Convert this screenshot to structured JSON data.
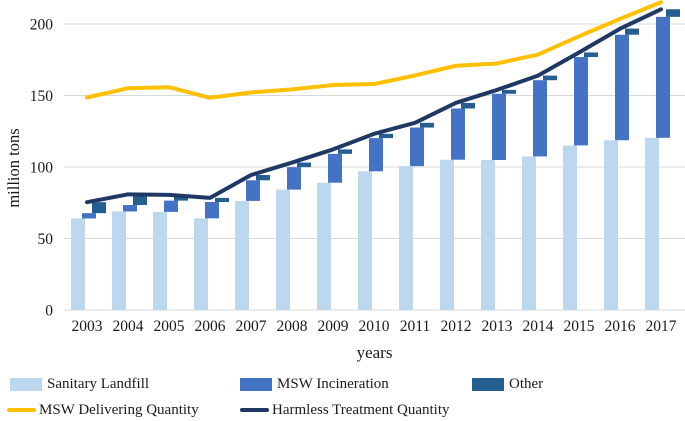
{
  "chart_data": {
    "type": "bar",
    "subtype": "cascading-stacked-bars-with-overlay-lines",
    "title": "",
    "xlabel": "years",
    "ylabel": "million tons",
    "ylim": [
      0,
      217
    ],
    "yticks": [
      0,
      50,
      100,
      150,
      200
    ],
    "grid": true,
    "legend_position": "bottom",
    "categories": [
      "2003",
      "2004",
      "2005",
      "2006",
      "2007",
      "2008",
      "2009",
      "2010",
      "2011",
      "2012",
      "2013",
      "2014",
      "2015",
      "2016",
      "2017"
    ],
    "bar_series": [
      {
        "name": "Sanitary Landfill",
        "color": "#BDD7EE",
        "values": [
          64.0,
          68.9,
          68.6,
          64.1,
          76.3,
          84.2,
          89.0,
          97.0,
          100.6,
          105.1,
          104.9,
          107.4,
          115.1,
          118.7,
          120.4
        ]
      },
      {
        "name": "MSW Incineration",
        "color": "#4472C4",
        "values": [
          3.7,
          4.5,
          7.9,
          11.4,
          14.4,
          15.7,
          20.2,
          23.2,
          27.0,
          35.8,
          46.3,
          53.3,
          61.8,
          73.8,
          84.6
        ]
      },
      {
        "name": "Other",
        "color": "#255E91",
        "values": [
          7.7,
          7.5,
          4.0,
          2.9,
          3.7,
          3.2,
          3.1,
          3.0,
          3.3,
          3.9,
          2.7,
          3.2,
          3.2,
          4.3,
          5.3
        ]
      }
    ],
    "line_series": [
      {
        "name": "MSW Delivering Quantity",
        "color": "#FFC000",
        "values": [
          148.6,
          155.1,
          155.8,
          148.4,
          152.1,
          154.3,
          157.3,
          158.0,
          164.0,
          170.8,
          172.4,
          178.6,
          191.4,
          203.6,
          215.2
        ]
      },
      {
        "name": "Harmless Treatment Quantity",
        "color": "#1F3864",
        "values": [
          75.4,
          80.9,
          80.5,
          78.4,
          94.4,
          103.1,
          112.3,
          123.2,
          130.9,
          144.9,
          153.9,
          163.9,
          180.1,
          196.7,
          210.3
        ]
      }
    ],
    "colors": {
      "grid": "#D9D9D9",
      "text": "#1A1A1A",
      "background": "#FFFFFF"
    }
  }
}
